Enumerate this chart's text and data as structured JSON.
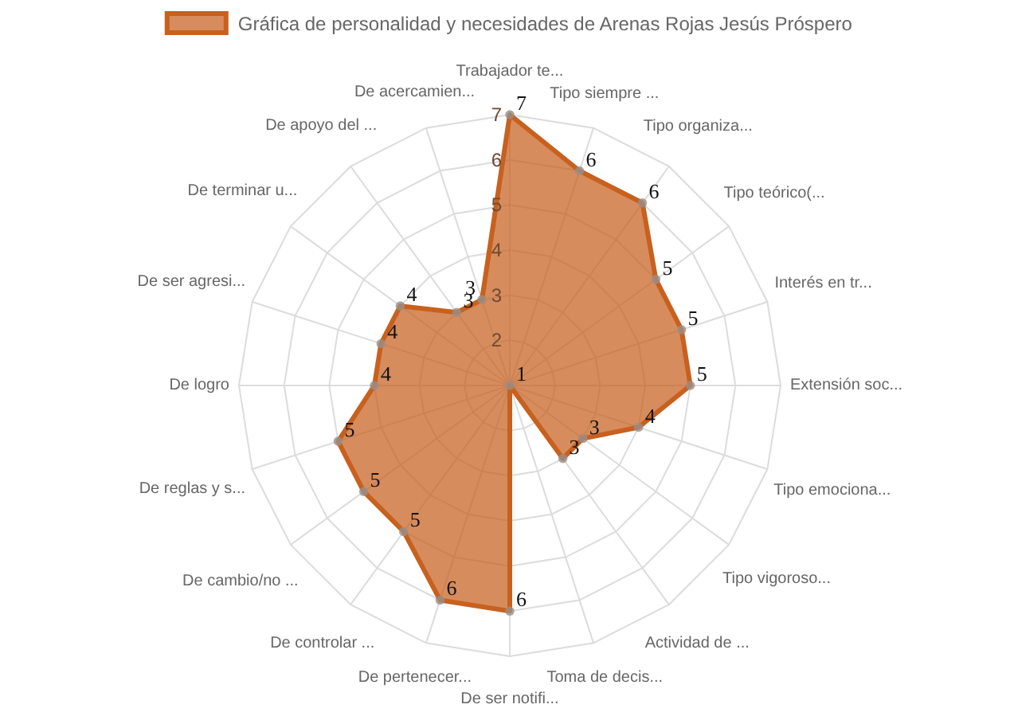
{
  "chart_data": {
    "type": "radar",
    "legend": "top",
    "categories": [
      "Trabajador te...",
      "Tipo siempre ...",
      "Tipo organiza...",
      "Tipo teórico(...",
      "Interés en tr...",
      "Extensión soc...",
      "Tipo emociona...",
      "Tipo vigoroso...",
      "Actividad de ...",
      "Toma de decis...",
      "De ser notifi...",
      "De pertenecer...",
      "De controlar ...",
      "De cambio/no ...",
      "De reglas y s...",
      "De logro",
      "De ser agresi...",
      "De terminar u...",
      "De apoyo del ...",
      "De acercamien..."
    ],
    "series": [
      {
        "name": "Gráfica de personalidad y necesidades de Arenas Rojas Jesús Próspero",
        "color": "#c8601e",
        "values": [
          7,
          6,
          6,
          5,
          5,
          5,
          4,
          3,
          3,
          1,
          6,
          6,
          5,
          5,
          5,
          4,
          4,
          4,
          3,
          3
        ]
      }
    ],
    "ylim": [
      1,
      7
    ],
    "yticks": [
      2,
      3,
      4,
      5,
      6,
      7
    ],
    "grid": true,
    "marker": "circle",
    "data_labels": true
  }
}
